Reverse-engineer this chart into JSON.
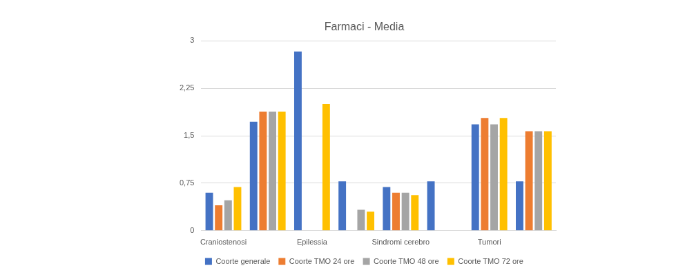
{
  "chart_data": {
    "type": "bar",
    "title": "Farmaci - Media",
    "categories": [
      "Craniostenosi",
      null,
      "Epilessia",
      null,
      "Sindromi cerebro",
      null,
      "Tumori",
      null
    ],
    "series": [
      {
        "name": "Coorte generale",
        "color": "#4472c4",
        "values": [
          0.6,
          1.72,
          2.83,
          0.78,
          0.69,
          0.78,
          1.68,
          0.78
        ]
      },
      {
        "name": "Coorte TMO 24 ore",
        "color": "#ed7d31",
        "values": [
          0.4,
          1.88,
          null,
          null,
          0.6,
          null,
          1.78,
          1.57
        ]
      },
      {
        "name": "Coorte TMO 48 ore",
        "color": "#a5a5a5",
        "values": [
          0.48,
          1.88,
          null,
          0.33,
          0.6,
          null,
          1.68,
          1.57
        ]
      },
      {
        "name": "Coorte TMO 72 ore",
        "color": "#ffc000",
        "values": [
          0.69,
          1.88,
          2.0,
          0.3,
          0.56,
          null,
          1.78,
          1.57
        ]
      }
    ],
    "ylim": [
      0,
      3
    ],
    "yticks": [
      0,
      {
        "value": 0.75,
        "label": "0,75"
      },
      {
        "value": 1.5,
        "label": "1,5"
      },
      {
        "value": 2.25,
        "label": "2,25"
      },
      3
    ],
    "grid": "y",
    "legend": "bottom"
  }
}
